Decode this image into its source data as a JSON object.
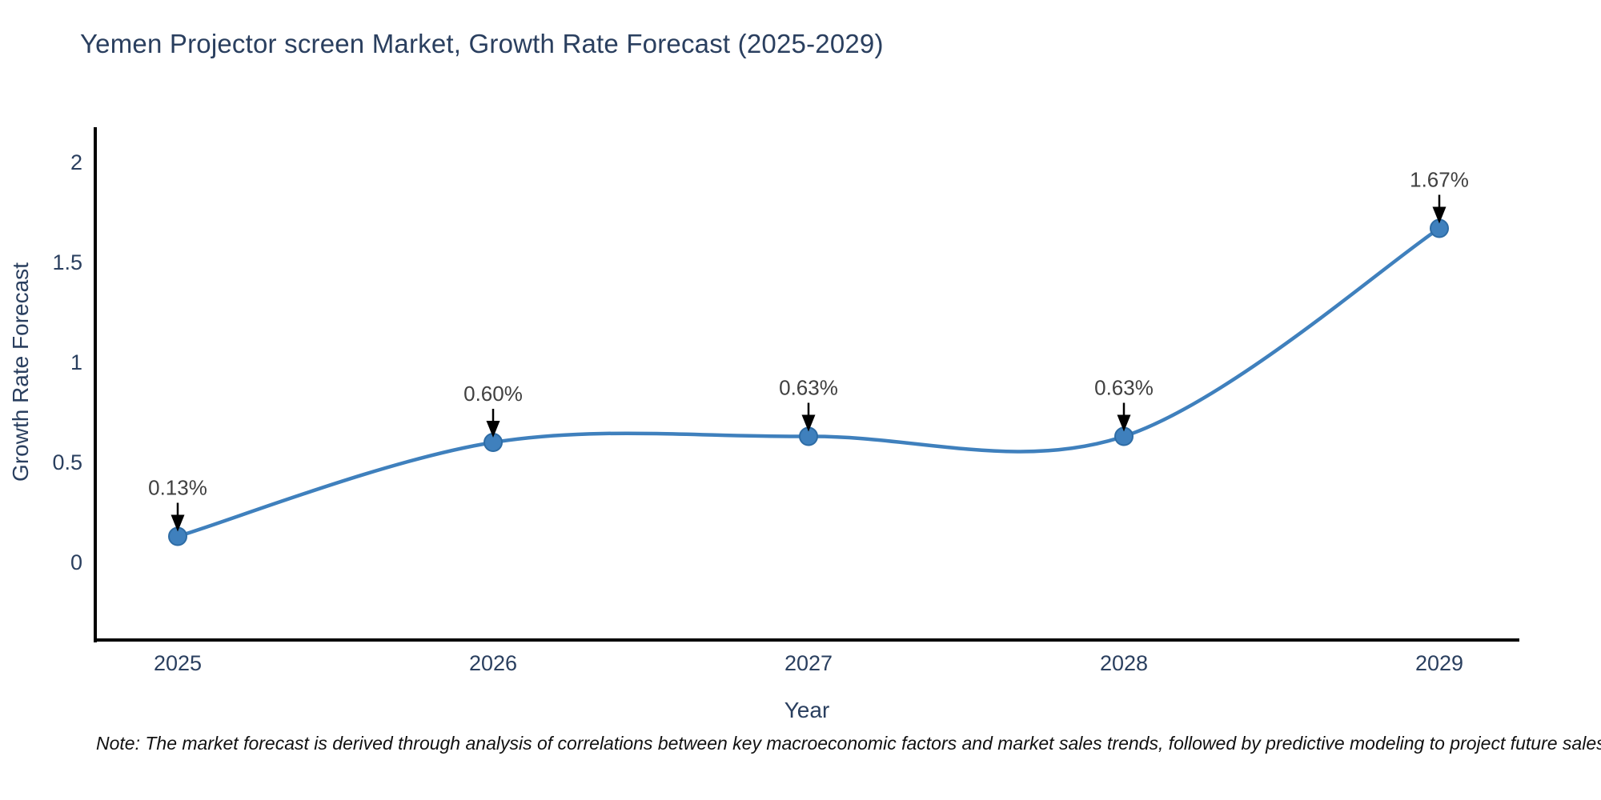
{
  "title": "Yemen Projector screen Market, Growth Rate Forecast (2025-2029)",
  "note": "Note: The market forecast is derived through analysis of correlations between key macroeconomic factors and market sales trends, followed by predictive modeling to project future sales",
  "colors": {
    "line": "#3f80bd",
    "marker_fill": "#3f80bd",
    "marker_edge": "#2e6ca5",
    "axis_line": "#000000",
    "title_text": "#2a3f5f",
    "tick_text": "#2a3f5f",
    "annotation_text": "#404040",
    "arrow": "#000000"
  },
  "chart_data": {
    "type": "line",
    "title": "Yemen Projector screen Market, Growth Rate Forecast (2025-2029)",
    "x": [
      2025,
      2026,
      2027,
      2028,
      2029
    ],
    "values": [
      0.13,
      0.6,
      0.63,
      0.63,
      1.67
    ],
    "point_labels": [
      "0.13%",
      "0.60%",
      "0.63%",
      "0.63%",
      "1.67%"
    ],
    "xlabel": "Year",
    "ylabel": "Growth Rate Forecast",
    "x_tick_labels": [
      "2025",
      "2026",
      "2027",
      "2028",
      "2029"
    ],
    "y_ticks": [
      0,
      0.5,
      1,
      1.5,
      2
    ],
    "y_tick_labels": [
      "0",
      "0.5",
      "1",
      "1.5",
      "2"
    ],
    "ylim": [
      -0.4,
      2.18
    ],
    "grid": false,
    "legend": "none",
    "line_shape": "spline",
    "markers": true
  }
}
